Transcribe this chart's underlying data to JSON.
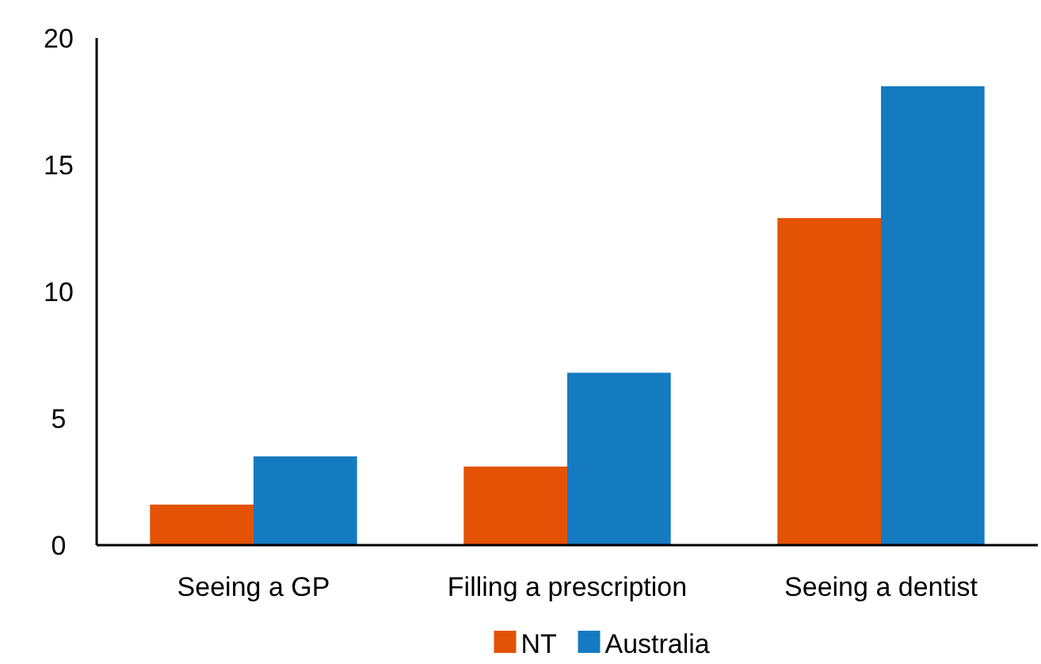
{
  "chart_data": {
    "type": "bar",
    "categories": [
      "Seeing a GP",
      "Filling a prescription",
      "Seeing a dentist"
    ],
    "series": [
      {
        "name": "NT",
        "color": "#e35205",
        "values": [
          1.6,
          3.1,
          12.9
        ]
      },
      {
        "name": "Australia",
        "color": "#147bc1",
        "values": [
          3.5,
          6.8,
          18.1
        ]
      }
    ],
    "ylim": [
      0,
      20
    ],
    "yticks": [
      0,
      5,
      10,
      15,
      20
    ],
    "grid": false,
    "legend": "bottom"
  }
}
